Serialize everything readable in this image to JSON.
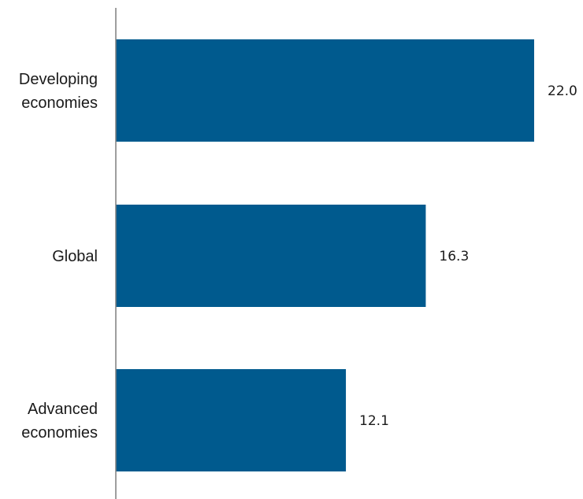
{
  "chart_data": {
    "type": "bar",
    "orientation": "horizontal",
    "categories": [
      [
        "Developing",
        "economies"
      ],
      [
        "Global"
      ],
      [
        "Advanced",
        "economies"
      ]
    ],
    "values": [
      22.0,
      16.3,
      12.1
    ],
    "value_labels": [
      "22.0",
      "16.3",
      "12.1"
    ],
    "xlim": [
      0,
      22.0
    ],
    "bar_color": "#005A8E",
    "axis_color": "#7f7f7f",
    "grid": false,
    "legend": "none",
    "title": "",
    "xlabel": "",
    "ylabel": ""
  }
}
